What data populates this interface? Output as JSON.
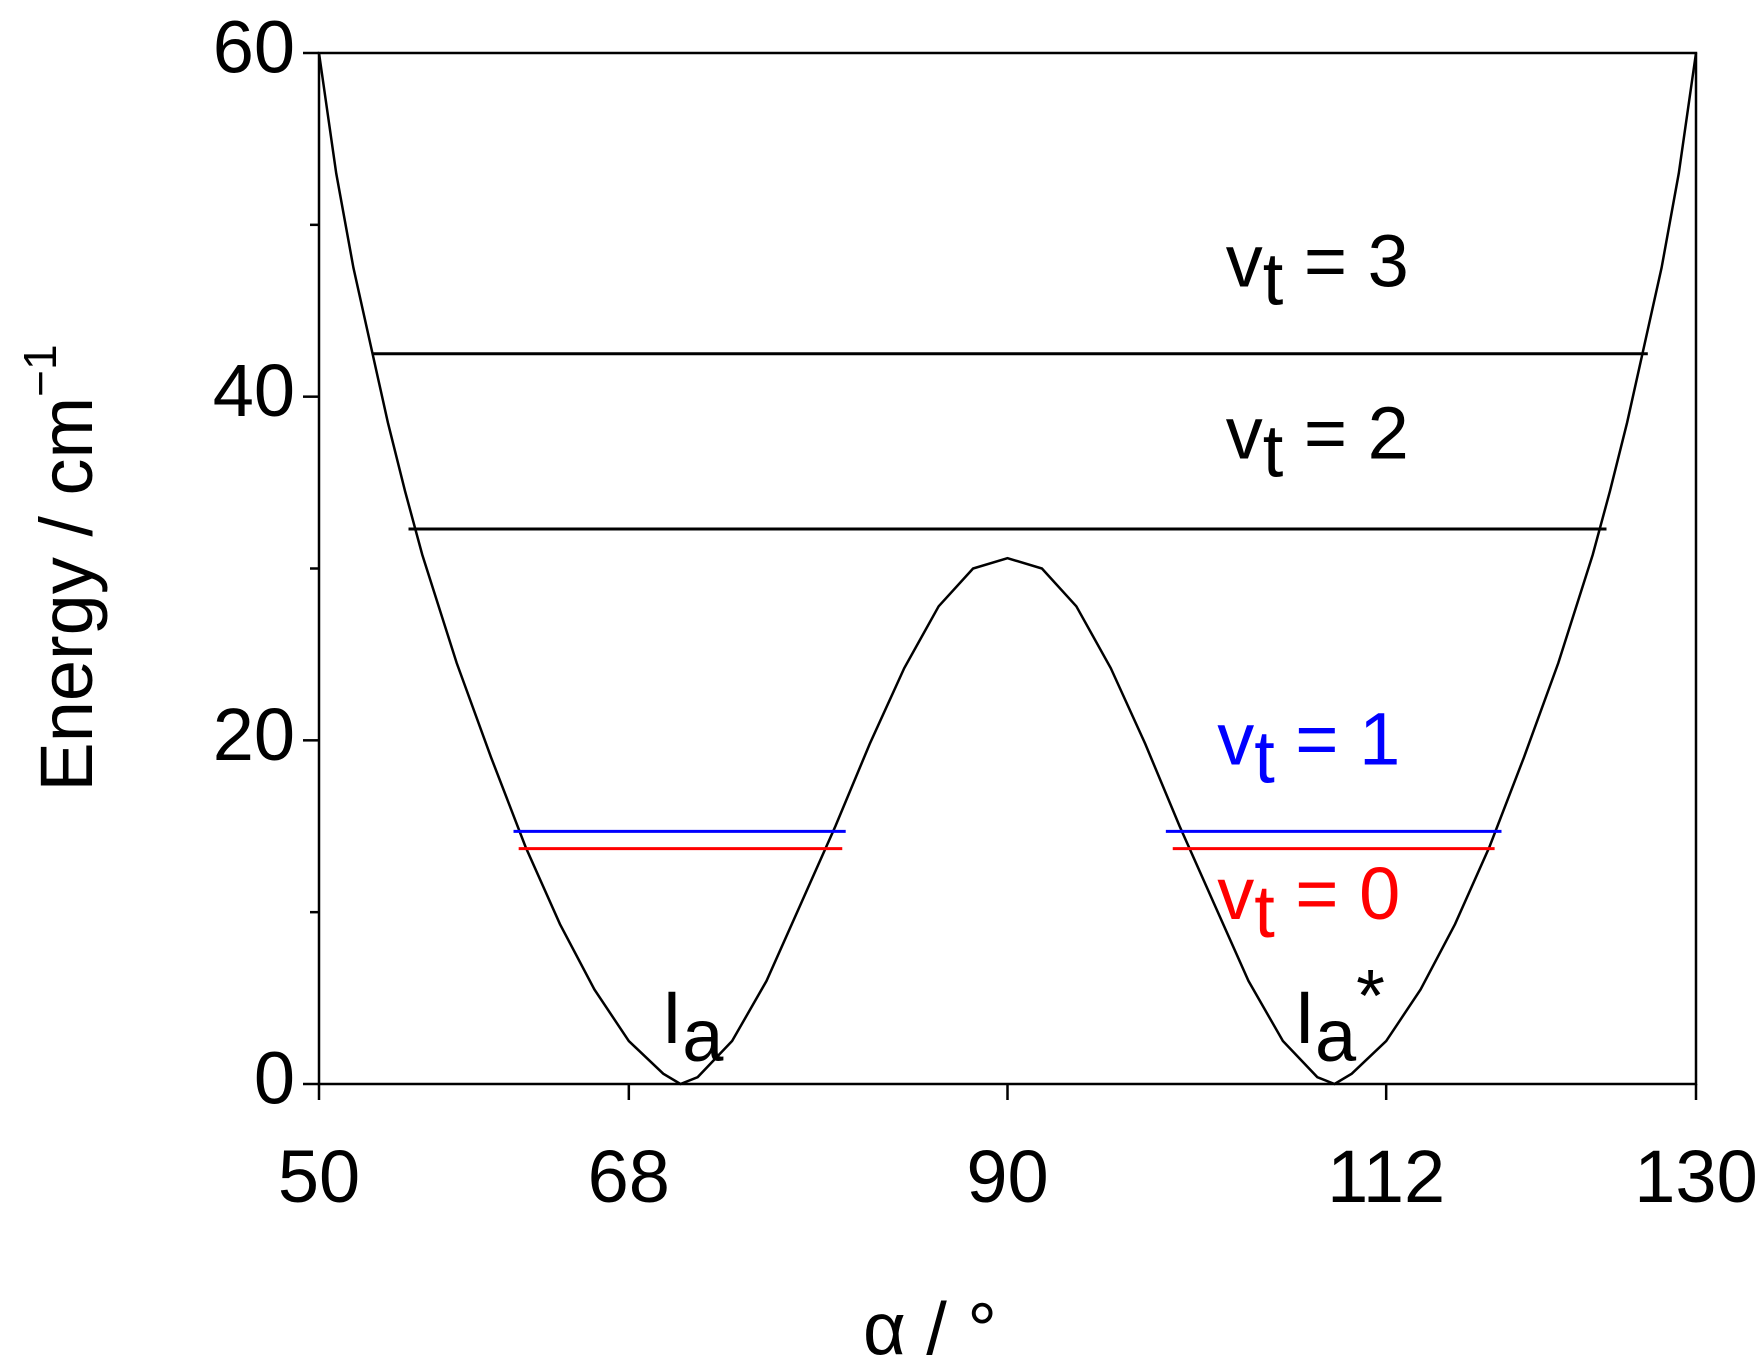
{
  "chart_data": {
    "type": "line",
    "xlabel": "α / °",
    "ylabel": "Energy / cm",
    "ylabel_sup": "−1",
    "xlim": [
      50,
      130
    ],
    "ylim": [
      0,
      60
    ],
    "xticks": [
      50,
      68,
      90,
      112,
      130
    ],
    "yticks": [
      0,
      20,
      40,
      60
    ],
    "minor_yticks": [
      10,
      30,
      50
    ],
    "curve": {
      "color": "#000000",
      "x": [
        50,
        51,
        52,
        53,
        54,
        55,
        56,
        58,
        60,
        62,
        64,
        66,
        68,
        70,
        71,
        72,
        74,
        76,
        78,
        80,
        82,
        84,
        86,
        88,
        90,
        92,
        94,
        96,
        98,
        100,
        102,
        104,
        106,
        108,
        109,
        110,
        112,
        114,
        116,
        118,
        120,
        122,
        124,
        125,
        126,
        127,
        128,
        129,
        130
      ],
      "values": [
        60,
        53,
        47.5,
        43,
        38.5,
        34.5,
        30.8,
        24.5,
        19,
        13.8,
        9.3,
        5.5,
        2.5,
        0.6,
        0,
        0.4,
        2.5,
        6,
        10.5,
        15,
        19.8,
        24.2,
        27.8,
        30,
        30.6,
        30,
        27.8,
        24.2,
        19.8,
        15,
        10.5,
        6,
        2.5,
        0.4,
        0,
        0.6,
        2.5,
        5.5,
        9.3,
        13.8,
        19,
        24.5,
        30.8,
        34.5,
        38.5,
        43,
        47.5,
        53,
        60
      ]
    },
    "levels": [
      {
        "label_main": "v",
        "label_sub": "t",
        "label_rest": " = 3",
        "color": "#000000",
        "energy": 42.5,
        "segments": [
          [
            53.1,
            127.2
          ]
        ]
      },
      {
        "label_main": "v",
        "label_sub": "t",
        "label_rest": " = 2",
        "color": "#000000",
        "energy": 32.3,
        "segments": [
          [
            55.2,
            124.8
          ]
        ]
      },
      {
        "label_main": "v",
        "label_sub": "t",
        "label_rest": " = 1",
        "color": "#0000ff",
        "energy": 14.7,
        "segments": [
          [
            61.3,
            80.6
          ],
          [
            99.2,
            118.7
          ]
        ]
      },
      {
        "label_main": "v",
        "label_sub": "t",
        "label_rest": " = 0",
        "color": "#ff0000",
        "energy": 13.7,
        "segments": [
          [
            61.6,
            80.4
          ],
          [
            99.6,
            118.3
          ]
        ]
      }
    ],
    "annotations": [
      {
        "main": "I",
        "sub": "a",
        "rest": ""
      },
      {
        "main": "I",
        "sub": "a",
        "rest": "*"
      }
    ]
  }
}
